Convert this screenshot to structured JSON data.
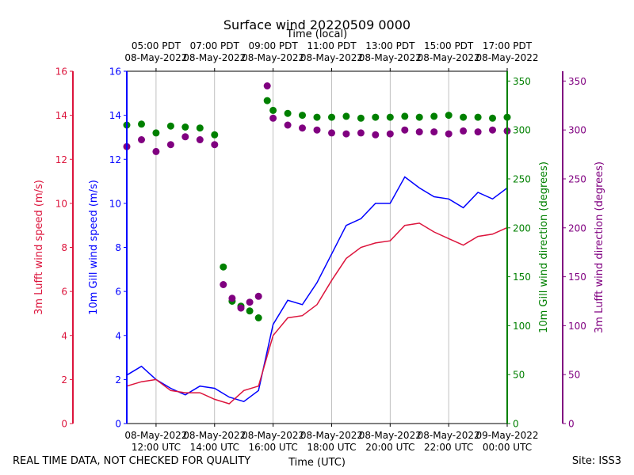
{
  "chart_data": {
    "type": "line",
    "title": "Surface wind 20220509 0000",
    "top_xlabel": "Time (local)",
    "bottom_xlabel": "Time (UTC)",
    "x_range_hours_utc": [
      11,
      24
    ],
    "bottom_ticks": [
      {
        "h": 12,
        "line1": "08-May-2022",
        "line2": "12:00 UTC"
      },
      {
        "h": 14,
        "line1": "08-May-2022",
        "line2": "14:00 UTC"
      },
      {
        "h": 16,
        "line1": "08-May-2022",
        "line2": "16:00 UTC"
      },
      {
        "h": 18,
        "line1": "08-May-2022",
        "line2": "18:00 UTC"
      },
      {
        "h": 20,
        "line1": "08-May-2022",
        "line2": "20:00 UTC"
      },
      {
        "h": 22,
        "line1": "08-May-2022",
        "line2": "22:00 UTC"
      },
      {
        "h": 24,
        "line1": "09-May-2022",
        "line2": "00:00 UTC"
      }
    ],
    "top_ticks": [
      {
        "h": 12,
        "line1": "05:00 PDT",
        "line2": "08-May-2022"
      },
      {
        "h": 14,
        "line1": "07:00 PDT",
        "line2": "08-May-2022"
      },
      {
        "h": 16,
        "line1": "09:00 PDT",
        "line2": "08-May-2022"
      },
      {
        "h": 18,
        "line1": "11:00 PDT",
        "line2": "08-May-2022"
      },
      {
        "h": 20,
        "line1": "13:00 PDT",
        "line2": "08-May-2022"
      },
      {
        "h": 22,
        "line1": "15:00 PDT",
        "line2": "08-May-2022"
      },
      {
        "h": 24,
        "line1": "17:00 PDT",
        "line2": "08-May-2022"
      }
    ],
    "axes": {
      "lufft_speed": {
        "label": "3m Lufft wind speed (m/s)",
        "range": [
          0,
          16
        ],
        "ticks": [
          "0",
          "2",
          "4",
          "6",
          "8",
          "10",
          "12",
          "14",
          "16"
        ],
        "color": "#dc143c"
      },
      "gill_speed": {
        "label": "10m Gill wind speed (m/s)",
        "range": [
          0,
          16
        ],
        "ticks": [
          "0",
          "2",
          "4",
          "6",
          "8",
          "10",
          "12",
          "14",
          "16"
        ],
        "color": "#0000ff"
      },
      "gill_dir": {
        "label": "10m Gill wind direction (degrees)",
        "range": [
          0,
          360
        ],
        "ticks": [
          "0",
          "50",
          "100",
          "150",
          "200",
          "250",
          "300",
          "350"
        ],
        "color": "#008000"
      },
      "lufft_dir": {
        "label": "3m Lufft wind direction (degrees)",
        "range": [
          0,
          360
        ],
        "ticks": [
          "0",
          "50",
          "100",
          "150",
          "200",
          "250",
          "300",
          "350"
        ],
        "color": "#800080"
      }
    },
    "series": [
      {
        "name": "10m Gill wind speed",
        "kind": "line",
        "axis": "gill_speed",
        "color": "#0000ff",
        "x": [
          11,
          11.5,
          12,
          12.5,
          13,
          13.5,
          14,
          14.5,
          15,
          15.5,
          16,
          16.5,
          17,
          17.5,
          18,
          18.5,
          19,
          19.5,
          20,
          20.5,
          21,
          21.5,
          22,
          22.5,
          23,
          23.5,
          24
        ],
        "values": [
          2.2,
          2.6,
          2.0,
          1.6,
          1.3,
          1.7,
          1.6,
          1.2,
          1.0,
          1.5,
          4.5,
          5.6,
          5.4,
          6.4,
          7.7,
          9.0,
          9.3,
          10.0,
          10.0,
          11.2,
          10.7,
          10.3,
          10.2,
          9.8,
          10.5,
          10.2,
          10.7
        ]
      },
      {
        "name": "3m Lufft wind speed",
        "kind": "line",
        "axis": "lufft_speed",
        "color": "#dc143c",
        "x": [
          11,
          11.5,
          12,
          12.5,
          13,
          13.5,
          14,
          14.5,
          15,
          15.5,
          16,
          16.5,
          17,
          17.5,
          18,
          18.5,
          19,
          19.5,
          20,
          20.5,
          21,
          21.5,
          22,
          22.5,
          23,
          23.5,
          24
        ],
        "values": [
          1.7,
          1.9,
          2.0,
          1.5,
          1.4,
          1.4,
          1.1,
          0.9,
          1.5,
          1.7,
          4.0,
          4.8,
          4.9,
          5.4,
          6.5,
          7.5,
          8.0,
          8.2,
          8.3,
          9.0,
          9.1,
          8.7,
          8.4,
          8.1,
          8.5,
          8.6,
          8.9
        ]
      },
      {
        "name": "10m Gill wind direction",
        "kind": "scatter",
        "axis": "gill_dir",
        "color": "#008000",
        "x": [
          11,
          11.5,
          12,
          12.5,
          13,
          13.5,
          14,
          14.3,
          14.6,
          14.9,
          15.2,
          15.5,
          15.8,
          16,
          16.5,
          17,
          17.5,
          18,
          18.5,
          19,
          19.5,
          20,
          20.5,
          21,
          21.5,
          22,
          22.5,
          23,
          23.5,
          24
        ],
        "values": [
          305,
          306,
          297,
          304,
          303,
          302,
          295,
          160,
          125,
          120,
          115,
          108,
          330,
          320,
          317,
          315,
          313,
          313,
          314,
          312,
          313,
          313,
          314,
          313,
          314,
          315,
          313,
          313,
          312,
          313
        ]
      },
      {
        "name": "3m Lufft wind direction",
        "kind": "scatter",
        "axis": "lufft_dir",
        "color": "#800080",
        "x": [
          11,
          11.5,
          12,
          12.5,
          13,
          13.5,
          14,
          14.3,
          14.6,
          14.9,
          15.2,
          15.5,
          15.8,
          16,
          16.5,
          17,
          17.5,
          18,
          18.5,
          19,
          19.5,
          20,
          20.5,
          21,
          21.5,
          22,
          22.5,
          23,
          23.5,
          24
        ],
        "values": [
          283,
          290,
          278,
          285,
          293,
          290,
          285,
          142,
          128,
          118,
          124,
          130,
          345,
          312,
          305,
          302,
          300,
          297,
          296,
          297,
          295,
          296,
          300,
          298,
          298,
          296,
          299,
          298,
          300,
          299
        ]
      }
    ]
  },
  "footer": {
    "left": "REAL TIME DATA, NOT CHECKED FOR QUALITY",
    "right": "Site: ISS3"
  }
}
